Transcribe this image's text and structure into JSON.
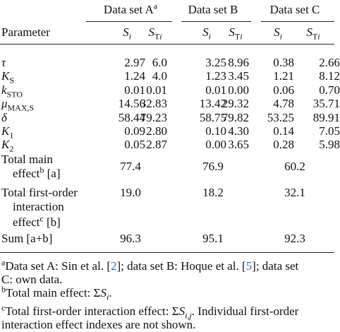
{
  "header": {
    "groups": [
      {
        "label": "Data set A",
        "note": "a"
      },
      {
        "label": "Data set B"
      },
      {
        "label": "Data set C"
      }
    ],
    "param_label": "Parameter",
    "columns": [
      {
        "base": "S",
        "sub": "i"
      },
      {
        "base": "S",
        "sub_roman": "T",
        "sub": "i"
      }
    ]
  },
  "rows": [
    {
      "symbol": "τ",
      "values": [
        "2.97",
        "6.0",
        "3.25",
        "8.96",
        "0.38",
        "2.66"
      ]
    },
    {
      "symbol": "K",
      "sub": "S",
      "values": [
        "1.24",
        "4.0",
        "1.23",
        "3.45",
        "1.21",
        "8.12"
      ]
    },
    {
      "symbol": "k",
      "sub": "STO",
      "values": [
        "0.01",
        "0.01",
        "0.01",
        "0.00",
        "0.06",
        "0.70"
      ]
    },
    {
      "symbol": "μ",
      "sub": "MAX,S",
      "values": [
        "14.56",
        "32.83",
        "13.42",
        "29.32",
        "4.78",
        "35.71"
      ]
    },
    {
      "symbol": "δ",
      "values": [
        "58.44",
        "79.23",
        "58.75",
        "79.82",
        "53.25",
        "89.91"
      ]
    },
    {
      "symbol": "K",
      "sub": "1",
      "values": [
        "0.09",
        "2.80",
        "0.10",
        "4.30",
        "0.14",
        "7.05"
      ]
    },
    {
      "symbol": "K",
      "sub": "2",
      "values": [
        "0.05",
        "2.87",
        "0.00",
        "3.65",
        "0.28",
        "5.98"
      ]
    }
  ],
  "summary": [
    {
      "lines": [
        "Total main",
        "effect"
      ],
      "note": "b",
      "tag": "[a]",
      "values": [
        "77.4",
        "76.9",
        "60.2"
      ]
    },
    {
      "lines": [
        "Total first-order",
        "interaction",
        "effect"
      ],
      "note": "c",
      "tag": "[b]",
      "values": [
        "19.0",
        "18.2",
        "32.1"
      ]
    },
    {
      "lines": [
        "Sum [a+b]"
      ],
      "values": [
        "96.3",
        "95.1",
        "92.3"
      ]
    }
  ],
  "footnotes": [
    {
      "note": "a",
      "lines": [
        [
          "Data set A: Sin et al. [",
          {
            "ref": "2"
          },
          "]; data set B: Hoque et al. [",
          {
            "ref": "5"
          },
          "]; data set"
        ],
        [
          "C: own data."
        ]
      ]
    },
    {
      "note": "b",
      "lines": [
        [
          "Total main effect: Σ",
          {
            "base": "S",
            "sub": "i"
          },
          "."
        ]
      ]
    },
    {
      "note": "c",
      "lines": [
        [
          "Total first-order interaction effect: Σ",
          {
            "base": "S",
            "sub": "i,j"
          },
          ". Individual first-order"
        ],
        [
          "interaction effect indexes are not shown."
        ]
      ]
    }
  ]
}
